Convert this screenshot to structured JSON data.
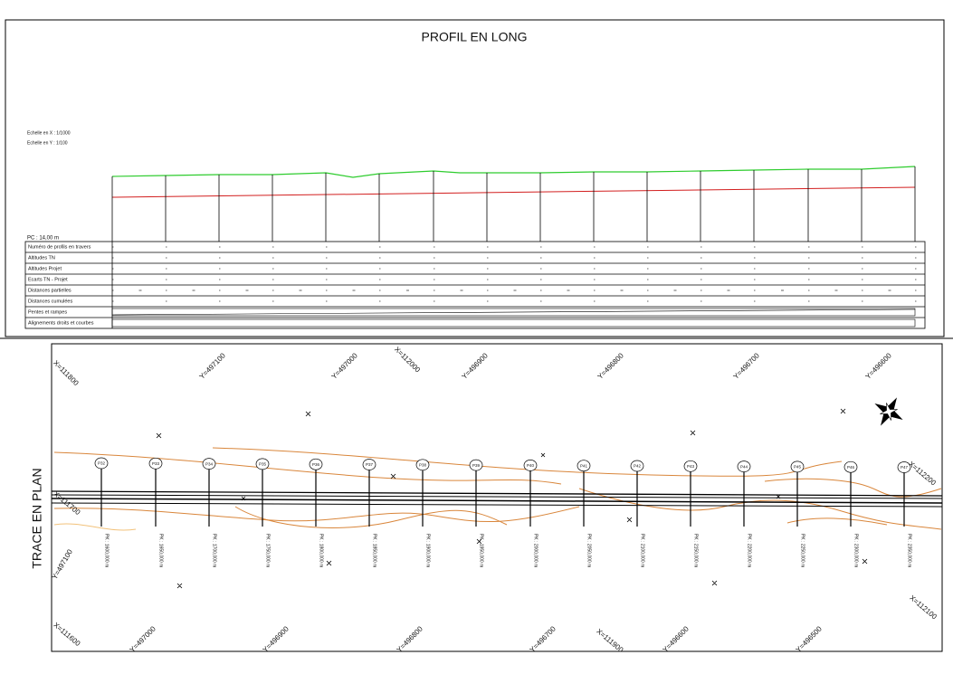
{
  "profile": {
    "title": "PROFIL EN LONG",
    "scale_x": "Echelle en X : 1/1000",
    "scale_y": "Echelle en Y : 1/100",
    "reference_plane": "PC : 14,00 m",
    "rows": [
      "Numéro de profils en travers",
      "Altitudes TN",
      "Altitudes Projet",
      "Ecarts TN - Projet",
      "Distances partielles",
      "Distances cumulées",
      "Pentes et rampes",
      "Alignements droits et courbes"
    ]
  },
  "plan": {
    "title": "TRACE EN PLAN",
    "stations": [
      {
        "label": "P32",
        "pk": "PK : 1600,000 m"
      },
      {
        "label": "P33",
        "pk": "PK : 1650,000 m"
      },
      {
        "label": "P34",
        "pk": "PK : 1700,000 m"
      },
      {
        "label": "P35",
        "pk": "PK : 1750,000 m"
      },
      {
        "label": "P36",
        "pk": "PK : 1800,000 m"
      },
      {
        "label": "P37",
        "pk": "PK : 1850,000 m"
      },
      {
        "label": "P38",
        "pk": "PK : 1900,000 m"
      },
      {
        "label": "P39",
        "pk": "PK : 1950,000 m"
      },
      {
        "label": "P40",
        "pk": "PK : 2000,000 m"
      },
      {
        "label": "P41",
        "pk": "PK : 2050,000 m"
      },
      {
        "label": "P42",
        "pk": "PK : 2100,000 m"
      },
      {
        "label": "P43",
        "pk": "PK : 2150,000 m"
      },
      {
        "label": "P44",
        "pk": "PK : 2200,000 m"
      },
      {
        "label": "P45",
        "pk": "PK : 2250,000 m"
      },
      {
        "label": "P46",
        "pk": "PK : 2300,000 m"
      },
      {
        "label": "P47",
        "pk": "PK : 2350,000 m"
      }
    ],
    "grid_labels": [
      "X=111800",
      "Y=497100",
      "Y=497000",
      "X=112000",
      "Y=496900",
      "Y=496800",
      "Y=496700",
      "Y=496600",
      "X=112200",
      "X=111700",
      "Y=497100",
      "X=111600",
      "Y=497000",
      "Y=496900",
      "Y=496800",
      "Y=496700",
      "X=111900",
      "Y=496600",
      "Y=496500",
      "X=112100"
    ]
  }
}
